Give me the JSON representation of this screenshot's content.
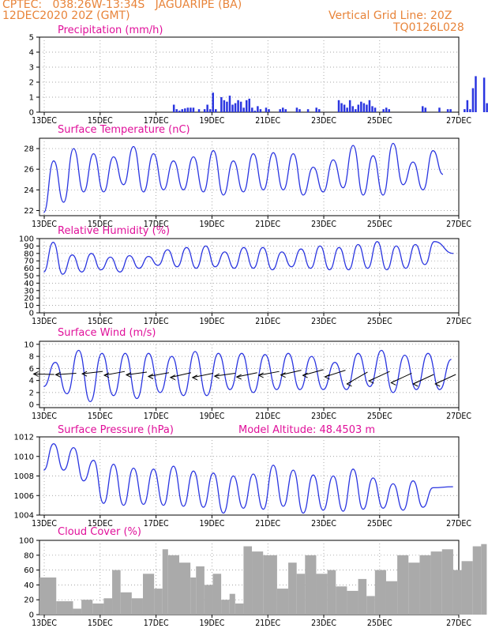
{
  "header": {
    "line1_left": "CPTEC:   038:26W-13:34S   JAGUARIPE (BA)",
    "line2_left": "12DEC2020 20Z (GMT)",
    "line2_right": "Vertical Grid Line: 20Z",
    "line3_right": "TQ0126L028",
    "model_altitude": "Model Altitude: 48.4503 m"
  },
  "colors": {
    "header": "#e8843a",
    "title": "#e0109a",
    "line": "#2a35e0",
    "bar": "#2a35e0",
    "cloud": "#aaaaaa"
  },
  "x_ticks": [
    "13DEC",
    "15DEC",
    "17DEC",
    "19DEC",
    "21DEC",
    "23DEC",
    "25DEC",
    "27DEC"
  ],
  "chart_data": [
    {
      "type": "bar",
      "title": "Precipitation (mm/h)",
      "ylim": [
        0,
        5
      ],
      "yticks": [
        "0",
        "1",
        "2",
        "3",
        "4",
        "5"
      ],
      "x_days": [
        4.8,
        4.9,
        5.0,
        5.1,
        5.2,
        5.3,
        5.4,
        5.5,
        5.7,
        5.9,
        6.0,
        6.1,
        6.2,
        6.3,
        6.5,
        6.6,
        6.7,
        6.8,
        6.9,
        7.0,
        7.1,
        7.2,
        7.3,
        7.4,
        7.5,
        7.6,
        7.7,
        7.8,
        7.9,
        8.1,
        8.2,
        8.6,
        8.7,
        8.8,
        9.2,
        9.3,
        9.6,
        9.9,
        10.0,
        10.7,
        10.8,
        10.9,
        11.0,
        11.1,
        11.2,
        11.3,
        11.4,
        11.5,
        11.6,
        11.7,
        11.8,
        11.9,
        12.0,
        12.3,
        12.4,
        12.5,
        13.7,
        13.8,
        14.3,
        14.6,
        14.7,
        15.2,
        15.3,
        15.4,
        15.5,
        15.6,
        15.9,
        16.0
      ],
      "values": [
        0.5,
        0.2,
        0.1,
        0.2,
        0.25,
        0.3,
        0.3,
        0.3,
        0.2,
        0.2,
        0.5,
        0.2,
        1.3,
        0.2,
        1.0,
        0.8,
        0.7,
        1.1,
        0.5,
        0.6,
        0.8,
        0.7,
        0.3,
        0.8,
        0.9,
        0.3,
        0.1,
        0.4,
        0.2,
        0.3,
        0.2,
        0.2,
        0.3,
        0.2,
        0.3,
        0.2,
        0.2,
        0.3,
        0.2,
        0.8,
        0.6,
        0.5,
        0.3,
        0.8,
        0.4,
        0.2,
        0.5,
        0.7,
        0.6,
        0.5,
        0.8,
        0.4,
        0.3,
        0.2,
        0.3,
        0.2,
        0.4,
        0.3,
        0.3,
        0.2,
        0.2,
        0.2,
        0.8,
        0.2,
        1.6,
        2.4,
        2.3,
        0.6
      ]
    },
    {
      "type": "line",
      "title": "Surface Temperature (nC)",
      "ylim": [
        21.5,
        29.0
      ],
      "yticks": [
        "22",
        "24",
        "26",
        "28"
      ],
      "peaks": [
        26.8,
        28.0,
        27.5,
        27.2,
        28.2,
        27.5,
        26.8,
        27.2,
        27.8,
        26.8,
        27.5,
        27.6,
        27.5,
        26.2,
        26.9,
        28.3,
        27.3,
        28.5,
        26.7,
        27.8
      ],
      "troughs": [
        21.8,
        22.8,
        23.8,
        23.8,
        24.5,
        23.8,
        24.0,
        24.0,
        23.8,
        23.5,
        23.8,
        24.0,
        24.0,
        23.5,
        23.8,
        24.2,
        23.5,
        23.5,
        24.5,
        24.0,
        25.5
      ]
    },
    {
      "type": "line",
      "title": "Relative Humidity (%)",
      "ylim": [
        0,
        100
      ],
      "yticks": [
        "0",
        "10",
        "20",
        "30",
        "40",
        "50",
        "60",
        "70",
        "80",
        "90",
        "100"
      ],
      "peaks": [
        95,
        78,
        80,
        75,
        77,
        76,
        85,
        88,
        90,
        82,
        88,
        88,
        82,
        86,
        90,
        88,
        92,
        96,
        90,
        92,
        96,
        80
      ],
      "troughs": [
        55,
        52,
        55,
        58,
        55,
        60,
        64,
        62,
        60,
        62,
        60,
        60,
        58,
        62,
        60,
        58,
        58,
        60,
        58,
        60,
        65
      ]
    },
    {
      "type": "line",
      "title": "Surface Wind (m/s)",
      "ylim": [
        -0.5,
        10.5
      ],
      "yticks": [
        "0",
        "2",
        "4",
        "6",
        "8",
        "10"
      ],
      "peaks": [
        7.0,
        9.0,
        8.5,
        8.5,
        8.5,
        8.0,
        8.8,
        8.5,
        8.5,
        8.3,
        8.5,
        8.0,
        7.0,
        8.5,
        9.0,
        8.2,
        8.5,
        7.5
      ],
      "troughs": [
        3.0,
        1.8,
        0.5,
        1.5,
        1.0,
        2.0,
        1.5,
        1.5,
        2.5,
        2.0,
        2.5,
        2.5,
        2.5,
        2.5,
        3.0,
        2.0,
        2.5,
        2.5
      ],
      "arrows": [
        [
          0.1,
          5.0,
          4.5,
          0.1
        ],
        [
          0.6,
          5.2,
          5.3,
          -0.3
        ],
        [
          1.2,
          5.5,
          4.5,
          -0.5
        ],
        [
          1.7,
          5.5,
          4.0,
          -0.8
        ],
        [
          2.2,
          5.4,
          4.5,
          -0.6
        ],
        [
          2.7,
          5.3,
          4.2,
          -0.8
        ],
        [
          3.2,
          5.3,
          4.0,
          -1.0
        ],
        [
          3.7,
          5.2,
          4.2,
          -0.9
        ],
        [
          4.2,
          5.2,
          4.5,
          -0.6
        ],
        [
          4.7,
          5.3,
          4.0,
          -0.9
        ],
        [
          5.2,
          5.5,
          4.3,
          -0.8
        ],
        [
          5.7,
          5.7,
          4.0,
          -1.0
        ],
        [
          6.2,
          5.8,
          3.5,
          -1.2
        ],
        [
          6.7,
          5.7,
          3.0,
          -1.4
        ],
        [
          7.2,
          5.4,
          2.5,
          -2.5
        ],
        [
          7.7,
          5.5,
          3.0,
          -2.0
        ],
        [
          8.2,
          5.2,
          2.5,
          -2.0
        ],
        [
          8.7,
          5.0,
          3.0,
          -2.0
        ],
        [
          9.2,
          5.0,
          3.5,
          -2.0
        ]
      ]
    },
    {
      "type": "line",
      "title": "Surface Pressure (hPa)",
      "ylim": [
        1004,
        1012
      ],
      "yticks": [
        "1004",
        "1006",
        "1008",
        "1010",
        "1012"
      ],
      "peaks": [
        1011.3,
        1010.9,
        1009.6,
        1009.2,
        1008.8,
        1008.7,
        1009.0,
        1008.5,
        1008.3,
        1008.0,
        1008.2,
        1009.1,
        1008.6,
        1008.1,
        1008.0,
        1008.7,
        1007.8,
        1007.2,
        1007.5,
        1006.8,
        1006.9
      ],
      "troughs": [
        1008.6,
        1008.6,
        1007.5,
        1005.2,
        1005.0,
        1005.1,
        1005.0,
        1004.9,
        1004.8,
        1004.2,
        1004.7,
        1004.6,
        1004.9,
        1004.2,
        1004.5,
        1004.4,
        1004.6,
        1004.7,
        1004.5,
        1004.8
      ]
    },
    {
      "type": "bar",
      "title": "Cloud Cover (%)",
      "ylim": [
        0,
        100
      ],
      "yticks": [
        "0",
        "20",
        "40",
        "60",
        "80",
        "100"
      ],
      "segments": [
        [
          0.0,
          0.6,
          50
        ],
        [
          0.6,
          1.2,
          18
        ],
        [
          1.2,
          1.5,
          8
        ],
        [
          1.5,
          1.9,
          20
        ],
        [
          1.9,
          2.3,
          15
        ],
        [
          2.3,
          2.6,
          22
        ],
        [
          2.6,
          2.9,
          60
        ],
        [
          2.9,
          3.3,
          30
        ],
        [
          3.3,
          3.7,
          22
        ],
        [
          3.7,
          4.1,
          55
        ],
        [
          4.1,
          4.4,
          35
        ],
        [
          4.4,
          4.6,
          88
        ],
        [
          4.6,
          5.0,
          80
        ],
        [
          5.0,
          5.4,
          70
        ],
        [
          5.4,
          5.6,
          50
        ],
        [
          5.6,
          5.9,
          65
        ],
        [
          5.9,
          6.2,
          40
        ],
        [
          6.2,
          6.5,
          55
        ],
        [
          6.5,
          6.8,
          20
        ],
        [
          6.8,
          7.0,
          28
        ],
        [
          7.0,
          7.3,
          15
        ],
        [
          7.3,
          7.6,
          92
        ],
        [
          7.6,
          8.0,
          85
        ],
        [
          8.0,
          8.5,
          80
        ],
        [
          8.5,
          8.9,
          35
        ],
        [
          8.9,
          9.2,
          70
        ],
        [
          9.2,
          9.5,
          55
        ],
        [
          9.5,
          9.9,
          80
        ],
        [
          9.9,
          10.3,
          55
        ],
        [
          10.3,
          10.6,
          60
        ],
        [
          10.6,
          11.0,
          38
        ],
        [
          11.0,
          11.4,
          32
        ],
        [
          11.4,
          11.7,
          48
        ],
        [
          11.7,
          12.0,
          25
        ],
        [
          12.0,
          12.4,
          60
        ],
        [
          12.4,
          12.8,
          45
        ],
        [
          12.8,
          13.2,
          80
        ],
        [
          13.2,
          13.6,
          70
        ],
        [
          13.6,
          14.0,
          80
        ],
        [
          14.0,
          14.4,
          85
        ],
        [
          14.4,
          14.8,
          88
        ],
        [
          14.8,
          15.1,
          60
        ],
        [
          15.1,
          15.5,
          72
        ],
        [
          15.5,
          15.8,
          92
        ],
        [
          15.8,
          16.0,
          95
        ]
      ]
    }
  ]
}
